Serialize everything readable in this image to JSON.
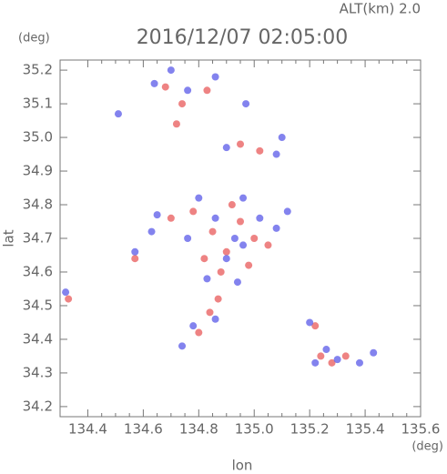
{
  "chart_data": {
    "type": "scatter",
    "title": "2016/12/07 02:05:00",
    "annotation": "ALT(km) 2.0",
    "y_unit": "(deg)",
    "x_unit": "(deg)",
    "x_label": "lon",
    "y_label": "lat",
    "xlim": [
      134.3,
      135.6
    ],
    "ylim": [
      34.17,
      35.23
    ],
    "xticks": [
      134.4,
      134.6,
      134.8,
      {
        "value": 135,
        "label": "135.0"
      },
      135.2,
      135.4,
      135.6
    ],
    "yticks": [
      34.2,
      34.3,
      34.4,
      34.5,
      34.6,
      34.7,
      34.8,
      34.9,
      {
        "value": 35,
        "label": "35.0"
      },
      35.1,
      35.2
    ],
    "series": [
      {
        "color": "#e85a5a",
        "x": [
          134.78,
          134.85,
          134.9,
          134.95,
          135.0,
          134.82,
          134.88,
          134.92,
          134.7,
          134.98,
          135.05,
          134.87,
          134.84,
          134.8,
          134.72,
          134.74,
          134.68,
          134.95,
          135.02,
          134.83,
          135.24,
          135.28,
          135.22,
          135.33,
          134.57,
          134.33
        ],
        "values": [
          34.78,
          34.72,
          34.66,
          34.75,
          34.7,
          34.64,
          34.6,
          34.8,
          34.76,
          34.62,
          34.68,
          34.52,
          34.48,
          34.42,
          35.04,
          35.1,
          35.15,
          34.98,
          34.96,
          35.14,
          34.35,
          34.33,
          34.44,
          34.35,
          34.64,
          34.52
        ]
      },
      {
        "color": "#5a5ae8",
        "x": [
          134.8,
          134.86,
          134.93,
          135.02,
          134.76,
          134.9,
          134.96,
          135.08,
          135.12,
          134.83,
          134.94,
          134.86,
          134.78,
          134.74,
          134.65,
          134.96,
          134.64,
          134.7,
          134.76,
          134.86,
          135.08,
          135.1,
          134.9,
          134.51,
          134.97,
          135.22,
          135.26,
          135.3,
          135.38,
          135.43,
          135.2,
          134.57,
          134.32,
          134.63
        ],
        "values": [
          34.82,
          34.76,
          34.7,
          34.76,
          34.7,
          34.64,
          34.68,
          34.73,
          34.78,
          34.58,
          34.57,
          34.46,
          34.44,
          34.38,
          34.77,
          34.82,
          35.16,
          35.2,
          35.14,
          35.18,
          34.95,
          35.0,
          34.97,
          35.07,
          35.1,
          34.33,
          34.37,
          34.34,
          34.33,
          34.36,
          34.45,
          34.66,
          34.54,
          34.72
        ]
      }
    ]
  }
}
